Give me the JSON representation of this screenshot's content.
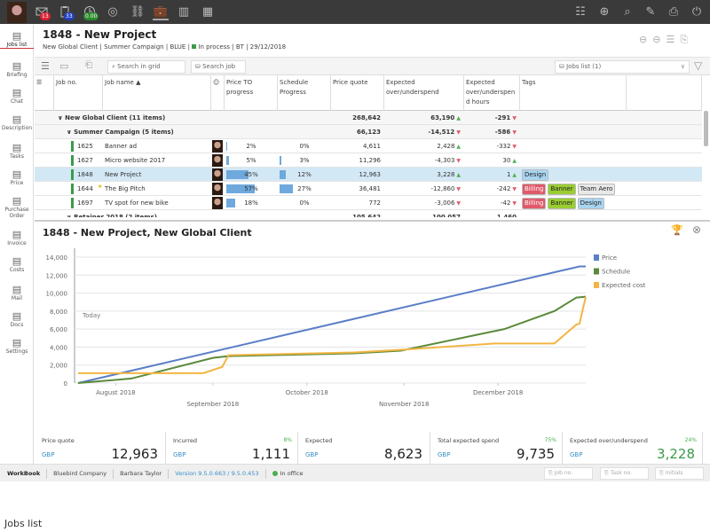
{
  "topbar": {
    "badges": {
      "mail": "13",
      "tasks": "33",
      "time": "0.00"
    },
    "icons_left": [
      "mail-icon",
      "clipboard-icon",
      "clock-icon",
      "target-icon",
      "link-icon",
      "briefcase-icon",
      "buildings-icon",
      "boxes-icon"
    ],
    "icons_right": [
      "users-icon",
      "zoom-in-icon",
      "search-icon",
      "edit-icon",
      "print-icon",
      "power-icon"
    ]
  },
  "sidebar": {
    "items": [
      {
        "label": "Jobs list",
        "icon": "list-icon"
      },
      {
        "label": "Briefing",
        "icon": "briefing-icon"
      },
      {
        "label": "Chat",
        "icon": "chat-icon"
      },
      {
        "label": "Description",
        "icon": "description-icon"
      },
      {
        "label": "Tasks",
        "icon": "tasks-icon"
      },
      {
        "label": "Price",
        "icon": "price-icon"
      },
      {
        "label": "Purchase Order",
        "icon": "purchase-order-icon"
      },
      {
        "label": "Invoice",
        "icon": "invoice-icon"
      },
      {
        "label": "Costs",
        "icon": "costs-icon"
      },
      {
        "label": "Mail",
        "icon": "mail-icon"
      },
      {
        "label": "Docs",
        "icon": "docs-icon"
      },
      {
        "label": "Settings",
        "icon": "settings-icon"
      }
    ]
  },
  "header": {
    "title": "1848 - New Project",
    "client": "New Global Client",
    "campaign": "Summer Campaign",
    "code": "BLUE",
    "status": "In process",
    "owner": "BT",
    "date": "29/12/2018",
    "status_color": "#3a9a4a"
  },
  "toolbar": {
    "search_placeholder": "Search in grid",
    "search_job": "Search job",
    "view_select": "Jobs list (1)"
  },
  "grid": {
    "columns": [
      "Job no.",
      "Job name ▲",
      "Price TO progress",
      "Schedule Progress",
      "Price quote",
      "Expected over/underspend",
      "Expected over/underspen d hours",
      "Tags"
    ],
    "groups": [
      {
        "label": "New Global Client (11 items)",
        "quote": "268,642",
        "over": "63,190",
        "over_dir": "up",
        "hours": "-291",
        "hours_dir": "down"
      },
      {
        "label": "Summer Campaign (5 items)",
        "quote": "66,123",
        "over": "-14,512",
        "over_dir": "down",
        "hours": "-586",
        "hours_dir": "down"
      }
    ],
    "rows": [
      {
        "no": "1625",
        "name": "Banner ad",
        "price_pct": 2,
        "price": "2%",
        "sched_pct": 0,
        "sched": "0%",
        "quote": "4,611",
        "over": "2,428",
        "over_dir": "up",
        "hours": "-332",
        "hours_dir": "down",
        "tags": []
      },
      {
        "no": "1627",
        "name": "Micro website 2017",
        "price_pct": 5,
        "price": "5%",
        "sched_pct": 3,
        "sched": "3%",
        "quote": "11,296",
        "over": "-4,303",
        "over_dir": "down",
        "hours": "30",
        "hours_dir": "up",
        "tags": []
      },
      {
        "no": "1848",
        "name": "New Project",
        "price_pct": 45,
        "price": "45%",
        "sched_pct": 12,
        "sched": "12%",
        "quote": "12,963",
        "over": "3,228",
        "over_dir": "up",
        "hours": "1",
        "hours_dir": "up",
        "tags": [
          "Design"
        ],
        "selected": true
      },
      {
        "no": "1644",
        "name": "The Big Pitch",
        "price_pct": 57,
        "price": "57%",
        "sched_pct": 27,
        "sched": "27%",
        "quote": "36,481",
        "over": "-12,860",
        "over_dir": "down",
        "hours": "-242",
        "hours_dir": "down",
        "tags": [
          "Billing",
          "Banner",
          "Team Aero"
        ],
        "starred": true
      },
      {
        "no": "1697",
        "name": "TV spot for new bike",
        "price_pct": 18,
        "price": "18%",
        "sched_pct": 0,
        "sched": "0%",
        "quote": "772",
        "over": "-3,006",
        "over_dir": "down",
        "hours": "-42",
        "hours_dir": "down",
        "tags": [
          "Billing",
          "Banner",
          "Design"
        ]
      }
    ],
    "partial_group": {
      "label": "Retainer 2018 (2 items)",
      "quote": "105,642",
      "over": "100,057",
      "hours": "1,460"
    },
    "tag_colors": {
      "Design": "#a9d4f0",
      "Billing": "#e05a6a",
      "Banner": "#9acd32",
      "Team Aero": "#e8e8e8"
    }
  },
  "chart_panel": {
    "title": "1848 - New Project, New Global Client"
  },
  "chart_data": {
    "type": "line",
    "today_label": "Today",
    "ylim": [
      0,
      14000
    ],
    "yticks": [
      0,
      2000,
      4000,
      6000,
      8000,
      10000,
      12000,
      14000
    ],
    "xlim": [
      "2018-07-20",
      "2018-12-29"
    ],
    "xticks": [
      {
        "date": "2018-08-01",
        "label": "August 2018"
      },
      {
        "date": "2018-09-01",
        "label": "September 2018"
      },
      {
        "date": "2018-10-01",
        "label": "October 2018"
      },
      {
        "date": "2018-11-01",
        "label": "November 2018"
      },
      {
        "date": "2018-12-01",
        "label": "December 2018"
      }
    ],
    "grid": true,
    "legend": "right",
    "series": [
      {
        "name": "Price",
        "color": "#5b7fc7",
        "points": [
          [
            "2018-07-20",
            0
          ],
          [
            "2018-12-27",
            12963
          ],
          [
            "2018-12-29",
            12963
          ]
        ]
      },
      {
        "name": "Schedule",
        "color": "#5a8a3a",
        "points": [
          [
            "2018-07-20",
            0
          ],
          [
            "2018-08-06",
            500
          ],
          [
            "2018-09-01",
            2800
          ],
          [
            "2018-09-06",
            3000
          ],
          [
            "2018-10-16",
            3300
          ],
          [
            "2018-10-31",
            3600
          ],
          [
            "2018-12-03",
            6000
          ],
          [
            "2018-12-19",
            8000
          ],
          [
            "2018-12-26",
            9500
          ],
          [
            "2018-12-29",
            9600
          ]
        ]
      },
      {
        "name": "Expected cost",
        "color": "#f2b544",
        "points": [
          [
            "2018-07-20",
            1100
          ],
          [
            "2018-08-29",
            1100
          ],
          [
            "2018-09-04",
            1800
          ],
          [
            "2018-09-06",
            3100
          ],
          [
            "2018-10-16",
            3400
          ],
          [
            "2018-10-31",
            3700
          ],
          [
            "2018-11-30",
            4400
          ],
          [
            "2018-12-19",
            4400
          ],
          [
            "2018-12-26",
            6500
          ],
          [
            "2018-12-27",
            6600
          ],
          [
            "2018-12-29",
            9600
          ]
        ]
      }
    ]
  },
  "kpis": [
    {
      "label": "Price quote",
      "currency": "GBP",
      "value": "12,963",
      "pct": ""
    },
    {
      "label": "Incurred",
      "currency": "GBP",
      "value": "1,111",
      "pct": "8%"
    },
    {
      "label": "Expected",
      "currency": "GBP",
      "value": "8,623",
      "pct": ""
    },
    {
      "label": "Total expected spend",
      "currency": "GBP",
      "value": "9,735",
      "pct": "75%"
    },
    {
      "label": "Expected over/underspend",
      "currency": "GBP",
      "value": "3,228",
      "pct": "24%"
    }
  ],
  "status": {
    "app": "WorkBook",
    "company": "Bluebird Company",
    "user": "Barbara Taylor",
    "version": "Version 9.5.0.663 / 9.5.0.453",
    "presence": "In office",
    "job_placeholder": "Job no.",
    "task_placeholder": "Task no.",
    "initials_placeholder": "Initials"
  },
  "caption": "Jobs list"
}
